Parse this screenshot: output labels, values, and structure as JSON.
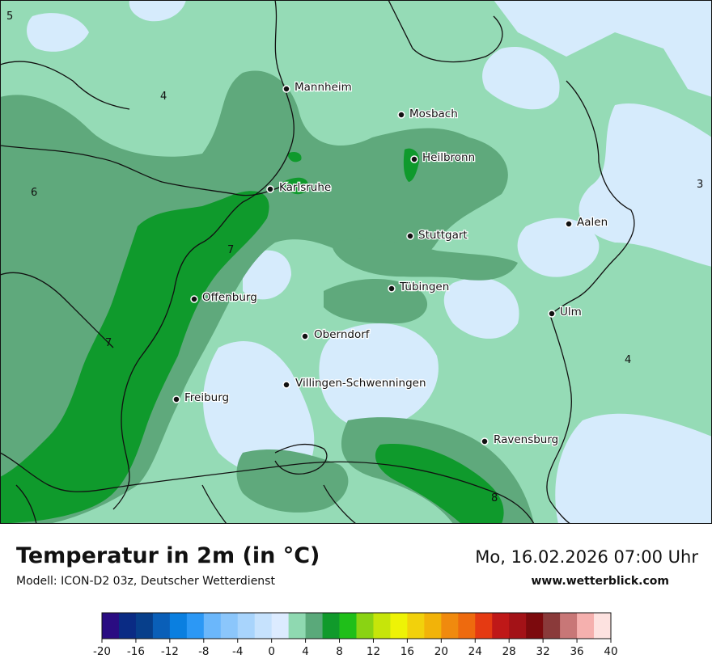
{
  "header": {
    "title": "Temperatur in 2m (in °C)",
    "model": "Modell: ICON-D2 03z, Deutscher Wetterdienst",
    "datetime": "Mo, 16.02.2026 07:00 Uhr",
    "website": "www.wetterblick.com"
  },
  "cities": [
    {
      "name": "Mannheim"
    },
    {
      "name": "Mosbach"
    },
    {
      "name": "Heilbronn"
    },
    {
      "name": "Karlsruhe"
    },
    {
      "name": "Stuttgart"
    },
    {
      "name": "Aalen"
    },
    {
      "name": "Tübingen"
    },
    {
      "name": "Offenburg"
    },
    {
      "name": "Ulm"
    },
    {
      "name": "Oberndorf"
    },
    {
      "name": "Villingen-Schwenningen"
    },
    {
      "name": "Freiburg"
    },
    {
      "name": "Ravensburg"
    }
  ],
  "isotherm_labels": [
    "5",
    "4",
    "6",
    "7",
    "7",
    "4",
    "3",
    "8"
  ],
  "colorbar": {
    "ticks": [
      "-20",
      "-16",
      "-12",
      "-8",
      "-4",
      "0",
      "4",
      "8",
      "12",
      "16",
      "20",
      "24",
      "28",
      "32",
      "36",
      "40"
    ],
    "colors": [
      "#2a0c82",
      "#0a2b84",
      "#073f8b",
      "#0a5fb8",
      "#0a7fe0",
      "#2c98f5",
      "#6bb7fb",
      "#8bc6fb",
      "#a8d4fc",
      "#c6e2fd",
      "#dcebff",
      "#8fd9b1",
      "#5aa97a",
      "#109a2b",
      "#1fbf19",
      "#8ad313",
      "#c6e50a",
      "#eef306",
      "#f2d10c",
      "#f2b309",
      "#f08a0e",
      "#ee6a0e",
      "#e53a12",
      "#bf1818",
      "#a31217",
      "#7c0a0d",
      "#8a3a3a",
      "#c87777",
      "#f5b0ae",
      "#fde2e0"
    ]
  }
}
